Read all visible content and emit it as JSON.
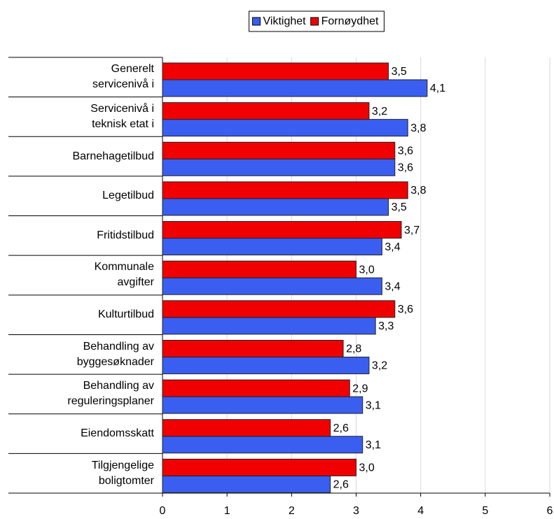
{
  "chart_data": {
    "type": "bar",
    "orientation": "horizontal",
    "categories": [
      "Generelt\nservicenivå i",
      "Servicenivå i\nteknisk etat i",
      "Barnehagetilbud",
      "Legetilbud",
      "Fritidstilbud",
      "Kommunale\navgifter",
      "Kulturtilbud",
      "Behandling av\nbyggesøknader",
      "Behandling av\nreguleringsplaner",
      "Eiendomsskatt",
      "Tilgjengelige\nboligtomter"
    ],
    "series": [
      {
        "name": "Viktighet",
        "color": "#3a5ef0",
        "values": [
          4.1,
          3.8,
          3.6,
          3.5,
          3.4,
          3.4,
          3.3,
          3.2,
          3.1,
          3.1,
          2.6
        ],
        "value_labels": [
          "4,1",
          "3,8",
          "3,6",
          "3,5",
          "3,4",
          "3,4",
          "3,3",
          "3,2",
          "3,1",
          "3,1",
          "2,6"
        ]
      },
      {
        "name": "Fornøydhet",
        "color": "#f00000",
        "values": [
          3.5,
          3.2,
          3.6,
          3.8,
          3.7,
          3.0,
          3.6,
          2.8,
          2.9,
          2.6,
          3.0
        ],
        "value_labels": [
          "3,5",
          "3,2",
          "3,6",
          "3,8",
          "3,7",
          "3,0",
          "3,6",
          "2,8",
          "2,9",
          "2,6",
          "3,0"
        ]
      }
    ],
    "xlim": [
      0,
      6
    ],
    "xticks": [
      0,
      1,
      2,
      3,
      4,
      5,
      6
    ],
    "grid": true,
    "legend": "top"
  }
}
